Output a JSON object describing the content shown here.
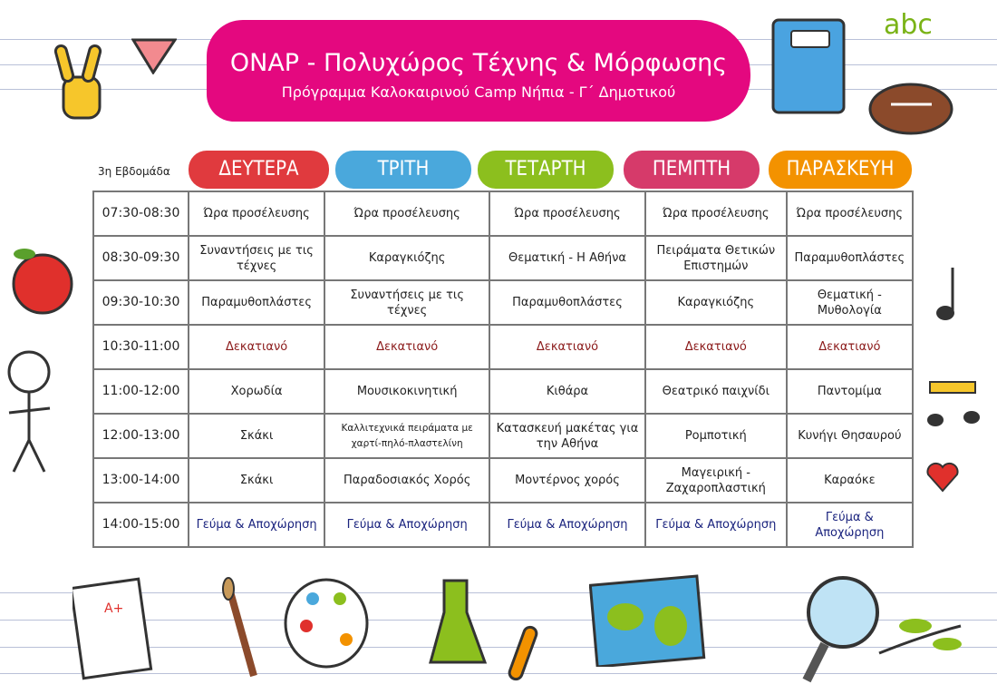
{
  "header": {
    "title": "ONAP - Πολυχώρος Τέχνης & Μόρφωσης",
    "subtitle": "Πρόγραμμα Καλοκαιρινού Camp Νήπια - Γ΄ Δημοτικού"
  },
  "week_label": "3η Εβδομάδα",
  "days": [
    {
      "label": "ΔΕΥΤΕΡΑ",
      "color": "#e03a3e"
    },
    {
      "label": "ΤΡΙΤΗ",
      "color": "#4aa8dc"
    },
    {
      "label": "ΤΕΤΑΡΤΗ",
      "color": "#8cbf1e"
    },
    {
      "label": "ΠΕΜΠΤΗ",
      "color": "#d63a6a"
    },
    {
      "label": "ΠΑΡΑΣΚΕΥΗ",
      "color": "#f39200"
    }
  ],
  "rows": [
    {
      "time": "07:30-08:30",
      "cells": [
        "Ώρα προσέλευσης",
        "Ώρα προσέλευσης",
        "Ώρα προσέλευσης",
        "Ώρα προσέλευσης",
        "Ώρα προσέλευσης"
      ]
    },
    {
      "time": "08:30-09:30",
      "cells": [
        "Συναντήσεις με τις τέχνες",
        "Καραγκιόζης",
        "Θεματική - Η Αθήνα",
        "Πειράματα Θετικών Επιστημών",
        "Παραμυθοπλάστες"
      ]
    },
    {
      "time": "09:30-10:30",
      "cells": [
        "Παραμυθοπλάστες",
        "Συναντήσεις με τις τέχνες",
        "Παραμυθοπλάστες",
        "Καραγκιόζης",
        "Θεματική - Μυθολογία"
      ]
    },
    {
      "time": "10:30-11:00",
      "cells": [
        "Δεκατιανό",
        "Δεκατιανό",
        "Δεκατιανό",
        "Δεκατιανό",
        "Δεκατιανό"
      ]
    },
    {
      "time": "11:00-12:00",
      "cells": [
        "Χορωδία",
        "Μουσικοκινητική",
        "Κιθάρα",
        "Θεατρικό παιχνίδι",
        "Παντομίμα"
      ]
    },
    {
      "time": "12:00-13:00",
      "cells": [
        "Σκάκι",
        "Καλλιτεχνικά πειράματα με χαρτί-πηλό-πλαστελίνη",
        "Κατασκευή μακέτας για την Αθήνα",
        "Ρομποτική",
        "Κυνήγι Θησαυρού"
      ]
    },
    {
      "time": "13:00-14:00",
      "cells": [
        "Σκάκι",
        "Παραδοσιακός Χορός",
        "Μοντέρνος χορός",
        "Μαγειρική - Ζαχαροπλαστική",
        "Καραόκε"
      ]
    },
    {
      "time": "14:00-15:00",
      "cells": [
        "Γεύμα & Αποχώρηση",
        "Γεύμα & Αποχώρηση",
        "Γεύμα & Αποχώρηση",
        "Γεύμα & Αποχώρηση",
        "Γεύμα & Αποχώρηση"
      ]
    }
  ],
  "decor": {
    "abc_text": "abc",
    "grade_text": "A+"
  }
}
